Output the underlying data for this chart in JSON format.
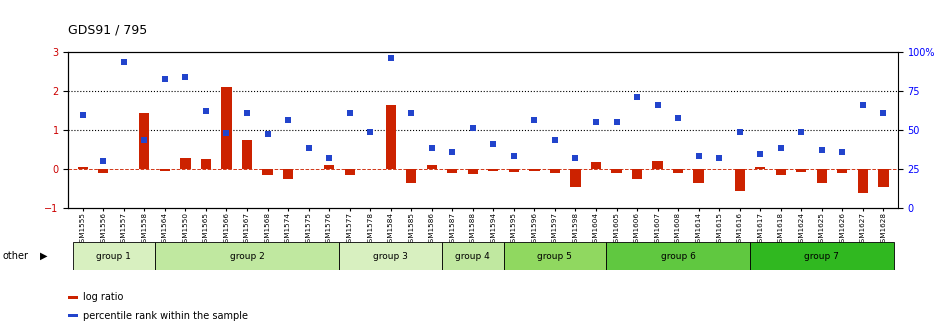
{
  "title": "GDS91 / 795",
  "samples": [
    "GSM1555",
    "GSM1556",
    "GSM1557",
    "GSM1558",
    "GSM1564",
    "GSM1550",
    "GSM1565",
    "GSM1566",
    "GSM1567",
    "GSM1568",
    "GSM1574",
    "GSM1575",
    "GSM1576",
    "GSM1577",
    "GSM1578",
    "GSM1584",
    "GSM1585",
    "GSM1586",
    "GSM1587",
    "GSM1588",
    "GSM1594",
    "GSM1595",
    "GSM1596",
    "GSM1597",
    "GSM1598",
    "GSM1604",
    "GSM1605",
    "GSM1606",
    "GSM1607",
    "GSM1608",
    "GSM1614",
    "GSM1615",
    "GSM1616",
    "GSM1617",
    "GSM1618",
    "GSM1624",
    "GSM1625",
    "GSM1626",
    "GSM1627",
    "GSM1628"
  ],
  "log_ratio": [
    0.05,
    -0.1,
    0.0,
    1.45,
    -0.05,
    0.28,
    0.27,
    2.1,
    0.75,
    -0.15,
    -0.25,
    0.0,
    0.1,
    -0.15,
    0.0,
    1.65,
    -0.35,
    0.1,
    -0.1,
    -0.12,
    -0.05,
    -0.08,
    -0.05,
    -0.1,
    -0.45,
    0.18,
    -0.1,
    -0.25,
    0.2,
    -0.1,
    -0.35,
    0.0,
    -0.55,
    0.05,
    -0.15,
    -0.08,
    -0.35,
    -0.1,
    -0.6,
    -0.45
  ],
  "percentile_rank": [
    1.4,
    0.2,
    2.75,
    0.75,
    2.3,
    2.35,
    1.5,
    0.93,
    1.43,
    0.9,
    1.25,
    0.55,
    0.3,
    1.45,
    0.95,
    2.85,
    1.45,
    0.55,
    0.45,
    1.05,
    0.65,
    0.35,
    1.25,
    0.75,
    0.3,
    1.2,
    1.2,
    1.85,
    1.65,
    1.3,
    0.35,
    0.3,
    0.95,
    0.4,
    0.55,
    0.95,
    0.5,
    0.45,
    1.65,
    1.45
  ],
  "groups": [
    {
      "name": "group 1",
      "start": 0,
      "end": 4,
      "color": "#d8f0c0"
    },
    {
      "name": "group 2",
      "start": 4,
      "end": 13,
      "color": "#c0e8a0"
    },
    {
      "name": "group 3",
      "start": 13,
      "end": 18,
      "color": "#d8f0c0"
    },
    {
      "name": "group 4",
      "start": 18,
      "end": 21,
      "color": "#c0e8a0"
    },
    {
      "name": "group 5",
      "start": 21,
      "end": 26,
      "color": "#90d860"
    },
    {
      "name": "group 6",
      "start": 26,
      "end": 33,
      "color": "#60c840"
    },
    {
      "name": "group 7",
      "start": 33,
      "end": 40,
      "color": "#30b820"
    }
  ],
  "bar_color": "#cc2200",
  "dot_color": "#2244cc",
  "ylim_left": [
    -1,
    3
  ],
  "ylim_right": [
    0,
    100
  ],
  "hlines": [
    1.0,
    2.0
  ],
  "bar_width": 0.5,
  "dot_size": 18
}
